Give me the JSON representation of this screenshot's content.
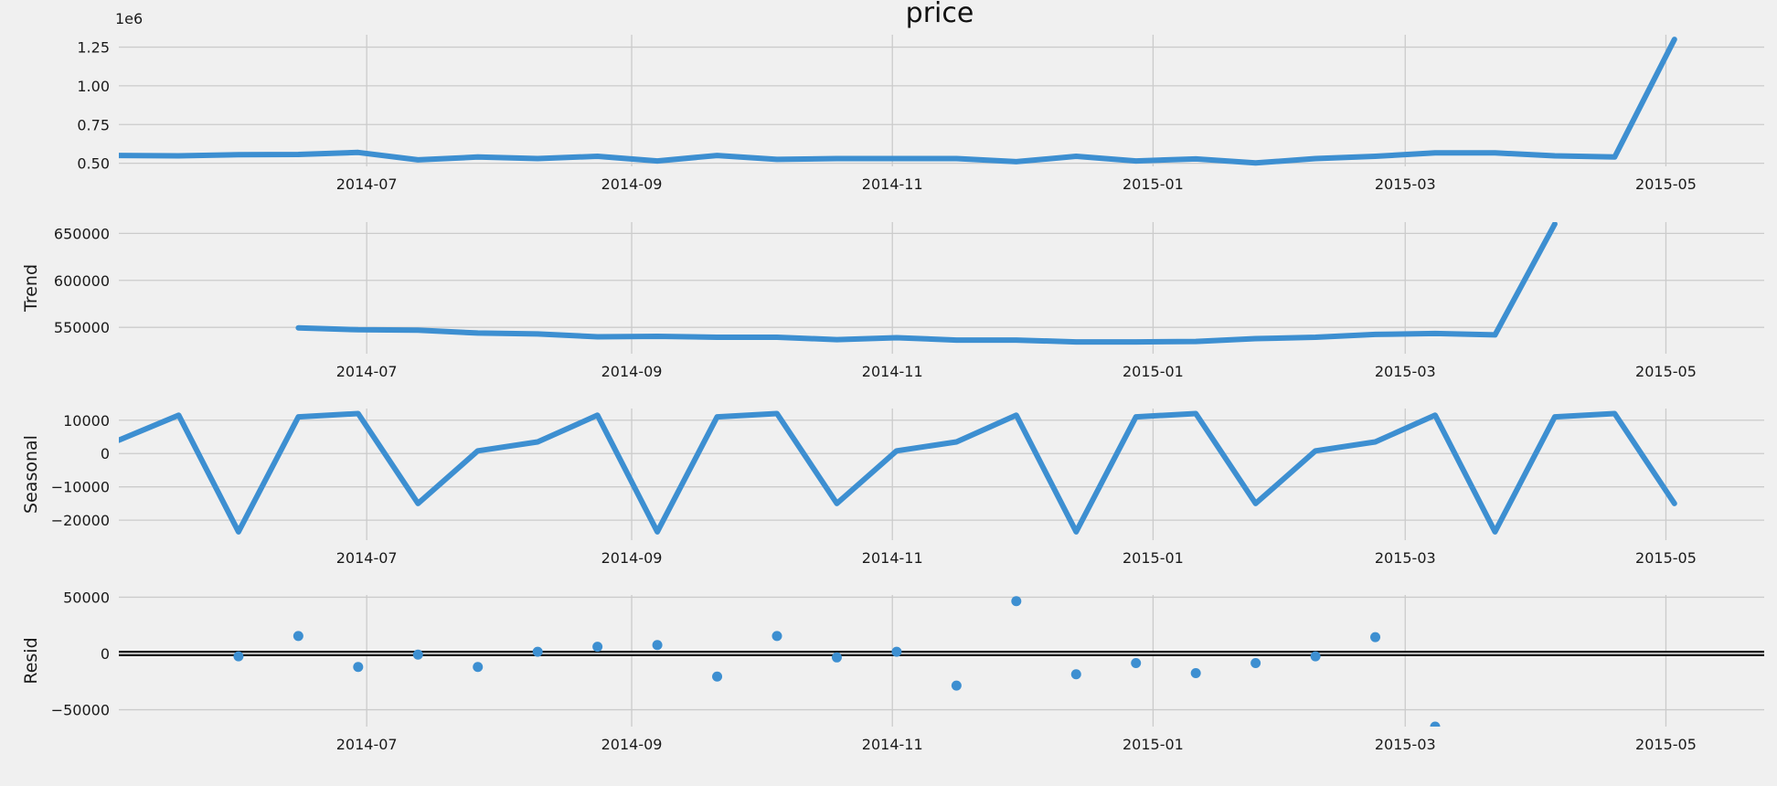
{
  "colors": {
    "series": "#3d8fd1",
    "background": "#f0f0f0",
    "grid": "#cbcbcb",
    "zeroline": "#111111"
  },
  "chart_data": {
    "type": "line",
    "title": "price",
    "x_dates": [
      "2014-05-04",
      "2014-05-18",
      "2014-06-01",
      "2014-06-15",
      "2014-06-29",
      "2014-07-13",
      "2014-07-27",
      "2014-08-10",
      "2014-08-24",
      "2014-09-07",
      "2014-09-21",
      "2014-10-05",
      "2014-10-19",
      "2014-11-02",
      "2014-11-16",
      "2014-11-30",
      "2014-12-14",
      "2014-12-28",
      "2015-01-11",
      "2015-01-25",
      "2015-02-08",
      "2015-02-22",
      "2015-03-08",
      "2015-03-22",
      "2015-04-05",
      "2015-04-19",
      "2015-05-03",
      "2015-05-17"
    ],
    "xlim": [
      "2014-05-04",
      "2015-05-24"
    ],
    "x_ticks": [
      {
        "date": "2014-07-01",
        "label": "2014-07"
      },
      {
        "date": "2014-09-01",
        "label": "2014-09"
      },
      {
        "date": "2014-11-01",
        "label": "2014-11"
      },
      {
        "date": "2015-01-01",
        "label": "2015-01"
      },
      {
        "date": "2015-03-01",
        "label": "2015-03"
      },
      {
        "date": "2015-05-01",
        "label": "2015-05"
      }
    ],
    "grid": true,
    "panels": [
      {
        "name": "observed",
        "ylabel": "",
        "offset_label": "1e6",
        "kind": "line",
        "ylim": [
          0.48,
          1.33
        ],
        "y_ticks": [
          {
            "value": 0.5,
            "label": "0.50"
          },
          {
            "value": 0.75,
            "label": "0.75"
          },
          {
            "value": 1.0,
            "label": "1.00"
          },
          {
            "value": 1.25,
            "label": "1.25"
          }
        ],
        "values": [
          0.55,
          0.548,
          0.555,
          0.557,
          0.57,
          0.522,
          0.54,
          0.53,
          0.545,
          0.515,
          0.55,
          0.525,
          0.53,
          0.53,
          0.53,
          0.51,
          0.545,
          0.515,
          0.528,
          0.502,
          0.53,
          0.545,
          0.567,
          0.567,
          0.548,
          0.54,
          1.3,
          null
        ]
      },
      {
        "name": "trend",
        "ylabel": "Trend",
        "offset_label": "",
        "kind": "line",
        "ylim": [
          522000,
          662000
        ],
        "y_ticks": [
          {
            "value": 550000,
            "label": "550000"
          },
          {
            "value": 600000,
            "label": "600000"
          },
          {
            "value": 650000,
            "label": "650000"
          }
        ],
        "values": [
          null,
          null,
          null,
          549500,
          547500,
          547000,
          544000,
          543000,
          540000,
          540500,
          539500,
          539500,
          537000,
          539000,
          536500,
          536500,
          534500,
          534500,
          535000,
          538000,
          539500,
          542500,
          543500,
          542000,
          660000,
          null,
          null,
          null
        ]
      },
      {
        "name": "seasonal",
        "ylabel": "Seasonal",
        "offset_label": "",
        "kind": "line",
        "ylim": [
          -26000,
          13500
        ],
        "y_ticks": [
          {
            "value": -20000,
            "label": "−20000"
          },
          {
            "value": -10000,
            "label": "−10000"
          },
          {
            "value": 0,
            "label": "0"
          },
          {
            "value": 10000,
            "label": "10000"
          }
        ],
        "values": [
          4000,
          11500,
          -23500,
          11000,
          12000,
          -15000,
          800,
          3500,
          11500,
          -23500,
          11000,
          12000,
          -15000,
          800,
          3500,
          11500,
          -23500,
          11000,
          12000,
          -15000,
          800,
          3500,
          11500,
          -23500,
          11000,
          12000,
          -15000,
          null
        ]
      },
      {
        "name": "resid",
        "ylabel": "Resid",
        "offset_label": "",
        "kind": "scatter",
        "zero_line": true,
        "ylim": [
          -65000,
          52000
        ],
        "y_ticks": [
          {
            "value": -50000,
            "label": "−50000"
          },
          {
            "value": 0,
            "label": "0"
          },
          {
            "value": 50000,
            "label": "50000"
          }
        ],
        "values": [
          null,
          null,
          -2500,
          15500,
          -12000,
          -1000,
          -12000,
          1500,
          6000,
          7500,
          -20500,
          15500,
          -3500,
          1500,
          -28500,
          46500,
          -18500,
          -8500,
          -17500,
          -8500,
          -2500,
          14500,
          -65000,
          null,
          null,
          null,
          null,
          null
        ]
      }
    ]
  }
}
